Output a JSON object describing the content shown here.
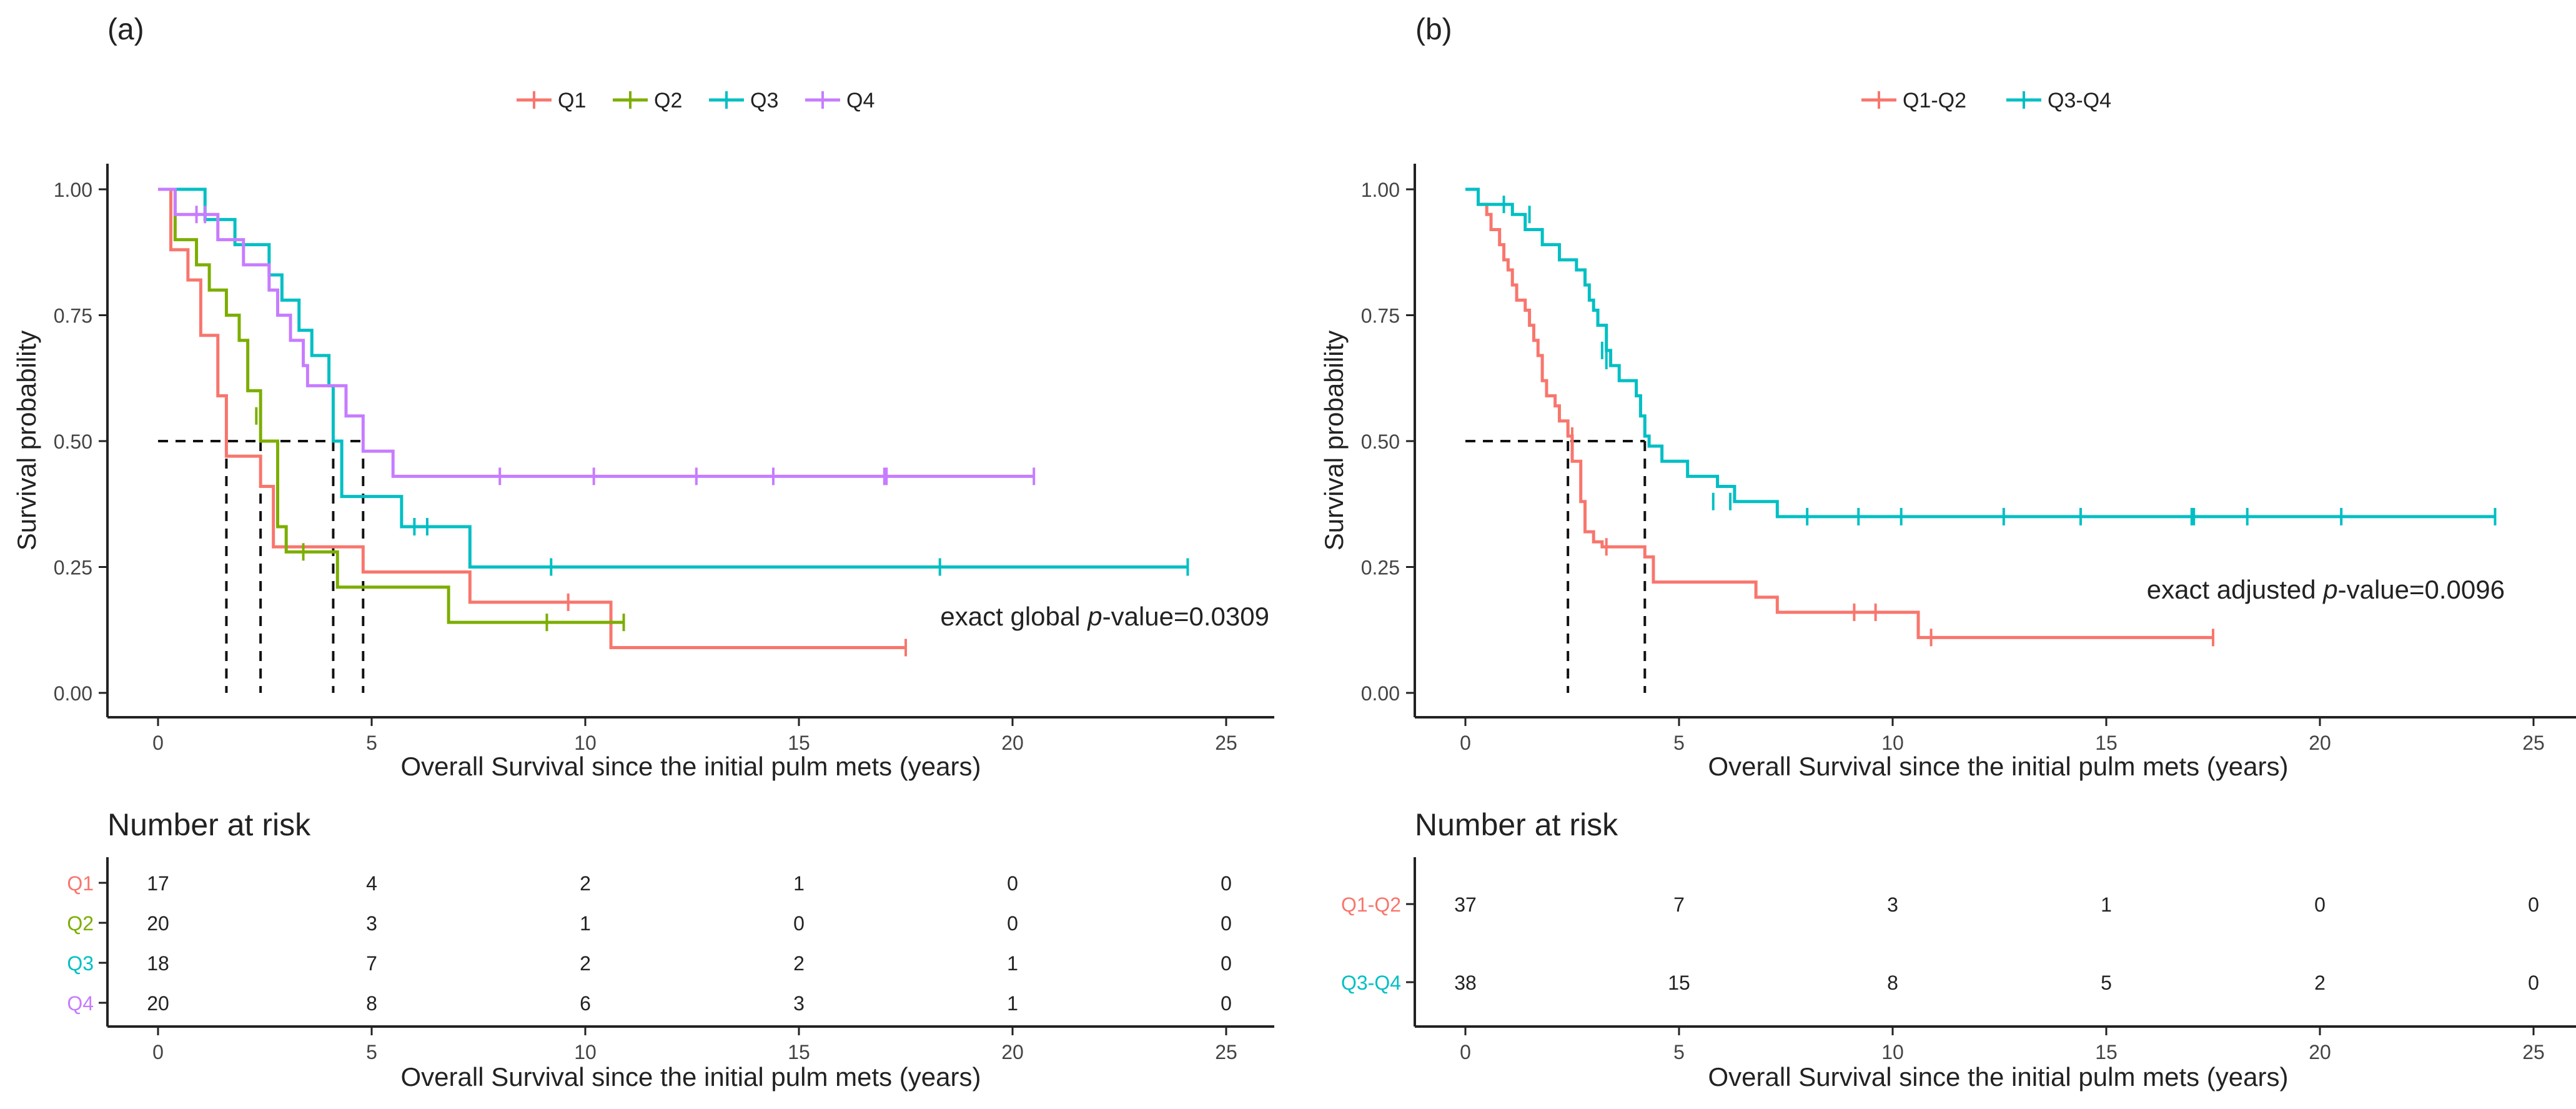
{
  "figure": {
    "panels": [
      {
        "label": "(a)",
        "legend": [
          "Q1",
          "Q2",
          "Q3",
          "Q4"
        ],
        "pvalue": {
          "prefix": "exact global ",
          "italic": "p",
          "suffix": "-value=0.0309"
        },
        "risk_title": "Number at risk"
      },
      {
        "label": "(b)",
        "legend": [
          "Q1-Q2",
          "Q3-Q4"
        ],
        "pvalue": {
          "prefix": "exact adjusted ",
          "italic": "p",
          "suffix": "-value=0.0096"
        },
        "risk_title": "Number at risk"
      }
    ]
  },
  "chart_data": [
    {
      "type": "line",
      "subtype": "kaplan-meier",
      "title": "(a)",
      "xlabel": "Overall Survival since the initial pulm mets (years)",
      "ylabel": "Survival probability",
      "xlim": [
        0,
        25
      ],
      "ylim": [
        0,
        1
      ],
      "xticks": [
        0,
        5,
        10,
        15,
        20,
        25
      ],
      "yticks": [
        0,
        0.25,
        0.5,
        0.75,
        1
      ],
      "yticklabels": [
        "0.00",
        "0.25",
        "0.50",
        "0.75",
        "1.00"
      ],
      "legend_position": "top",
      "median_line_y": 0.5,
      "medians": [
        1.6,
        2.4,
        4.1,
        4.8
      ],
      "series": [
        {
          "name": "Q1",
          "color": "#F8766D",
          "steps": [
            [
              0,
              1
            ],
            [
              0.3,
              0.88
            ],
            [
              0.7,
              0.82
            ],
            [
              1.0,
              0.71
            ],
            [
              1.4,
              0.59
            ],
            [
              1.6,
              0.47
            ],
            [
              2.4,
              0.41
            ],
            [
              2.7,
              0.29
            ],
            [
              4.8,
              0.24
            ],
            [
              7.3,
              0.18
            ],
            [
              10.6,
              0.09
            ],
            [
              17.5,
              0.09
            ]
          ],
          "censored": [
            [
              9.6,
              0.18
            ],
            [
              17.5,
              0.09
            ]
          ]
        },
        {
          "name": "Q2",
          "color": "#7CAE00",
          "steps": [
            [
              0,
              1
            ],
            [
              0.4,
              0.9
            ],
            [
              0.9,
              0.85
            ],
            [
              1.2,
              0.8
            ],
            [
              1.6,
              0.75
            ],
            [
              1.9,
              0.7
            ],
            [
              2.1,
              0.6
            ],
            [
              2.4,
              0.5
            ],
            [
              2.8,
              0.33
            ],
            [
              3.0,
              0.28
            ],
            [
              4.2,
              0.21
            ],
            [
              6.8,
              0.14
            ],
            [
              10.9,
              0.14
            ]
          ],
          "censored": [
            [
              2.3,
              0.55
            ],
            [
              3.4,
              0.28
            ],
            [
              9.1,
              0.14
            ],
            [
              10.9,
              0.14
            ]
          ]
        },
        {
          "name": "Q3",
          "color": "#00BFC4",
          "steps": [
            [
              0,
              1
            ],
            [
              1.1,
              0.94
            ],
            [
              1.8,
              0.89
            ],
            [
              2.6,
              0.83
            ],
            [
              2.9,
              0.78
            ],
            [
              3.3,
              0.72
            ],
            [
              3.6,
              0.67
            ],
            [
              4.0,
              0.61
            ],
            [
              4.1,
              0.5
            ],
            [
              4.3,
              0.39
            ],
            [
              5.7,
              0.33
            ],
            [
              7.3,
              0.25
            ],
            [
              24.1,
              0.25
            ]
          ],
          "censored": [
            [
              6.0,
              0.33
            ],
            [
              6.3,
              0.33
            ],
            [
              9.2,
              0.25
            ],
            [
              18.3,
              0.25
            ],
            [
              24.1,
              0.25
            ]
          ]
        },
        {
          "name": "Q4",
          "color": "#C77CFF",
          "steps": [
            [
              0,
              1
            ],
            [
              0.4,
              0.95
            ],
            [
              1.4,
              0.9
            ],
            [
              2.0,
              0.85
            ],
            [
              2.6,
              0.8
            ],
            [
              2.8,
              0.75
            ],
            [
              3.1,
              0.7
            ],
            [
              3.4,
              0.65
            ],
            [
              3.5,
              0.61
            ],
            [
              4.4,
              0.55
            ],
            [
              4.8,
              0.48
            ],
            [
              5.5,
              0.43
            ],
            [
              20.5,
              0.43
            ]
          ],
          "censored": [
            [
              0.9,
              0.95
            ],
            [
              1.1,
              0.95
            ],
            [
              3.4,
              0.67
            ],
            [
              8.0,
              0.43
            ],
            [
              10.2,
              0.43
            ],
            [
              12.6,
              0.43
            ],
            [
              14.4,
              0.43
            ],
            [
              17.0,
              0.43
            ],
            [
              17.05,
              0.43
            ],
            [
              20.5,
              0.43
            ]
          ]
        }
      ],
      "risk_table": {
        "title": "Number at risk",
        "xlabel": "Overall Survival since the initial pulm mets (years)",
        "times": [
          0,
          5,
          10,
          15,
          20,
          25
        ],
        "rows": [
          {
            "name": "Q1",
            "color": "#F8766D",
            "values": [
              17,
              4,
              2,
              1,
              0,
              0
            ]
          },
          {
            "name": "Q2",
            "color": "#7CAE00",
            "values": [
              20,
              3,
              1,
              0,
              0,
              0
            ]
          },
          {
            "name": "Q3",
            "color": "#00BFC4",
            "values": [
              18,
              7,
              2,
              2,
              1,
              0
            ]
          },
          {
            "name": "Q4",
            "color": "#C77CFF",
            "values": [
              20,
              8,
              6,
              3,
              1,
              0
            ]
          }
        ]
      }
    },
    {
      "type": "line",
      "subtype": "kaplan-meier",
      "title": "(b)",
      "xlabel": "Overall Survival since the initial pulm mets (years)",
      "ylabel": "Survival probability",
      "xlim": [
        0,
        25
      ],
      "ylim": [
        0,
        1
      ],
      "xticks": [
        0,
        5,
        10,
        15,
        20,
        25
      ],
      "yticks": [
        0,
        0.25,
        0.5,
        0.75,
        1
      ],
      "yticklabels": [
        "0.00",
        "0.25",
        "0.50",
        "0.75",
        "1.00"
      ],
      "legend_position": "top",
      "median_line_y": 0.5,
      "medians": [
        2.4,
        4.2
      ],
      "series": [
        {
          "name": "Q1-Q2",
          "color": "#F8766D",
          "steps": [
            [
              0,
              1
            ],
            [
              0.3,
              0.97
            ],
            [
              0.5,
              0.95
            ],
            [
              0.6,
              0.92
            ],
            [
              0.8,
              0.89
            ],
            [
              0.9,
              0.86
            ],
            [
              1.0,
              0.84
            ],
            [
              1.1,
              0.81
            ],
            [
              1.2,
              0.78
            ],
            [
              1.4,
              0.76
            ],
            [
              1.5,
              0.73
            ],
            [
              1.6,
              0.7
            ],
            [
              1.7,
              0.67
            ],
            [
              1.8,
              0.62
            ],
            [
              1.9,
              0.59
            ],
            [
              2.1,
              0.57
            ],
            [
              2.2,
              0.54
            ],
            [
              2.4,
              0.51
            ],
            [
              2.5,
              0.46
            ],
            [
              2.7,
              0.38
            ],
            [
              2.8,
              0.32
            ],
            [
              3.0,
              0.3
            ],
            [
              3.2,
              0.29
            ],
            [
              4.2,
              0.27
            ],
            [
              4.4,
              0.22
            ],
            [
              6.8,
              0.19
            ],
            [
              7.3,
              0.16
            ],
            [
              10.6,
              0.11
            ],
            [
              17.5,
              0.11
            ]
          ],
          "censored": [
            [
              2.5,
              0.51
            ],
            [
              3.3,
              0.29
            ],
            [
              9.1,
              0.16
            ],
            [
              9.6,
              0.16
            ],
            [
              10.9,
              0.11
            ],
            [
              17.5,
              0.11
            ]
          ]
        },
        {
          "name": "Q3-Q4",
          "color": "#00BFC4",
          "steps": [
            [
              0,
              1
            ],
            [
              0.3,
              0.97
            ],
            [
              1.1,
              0.95
            ],
            [
              1.4,
              0.92
            ],
            [
              1.8,
              0.89
            ],
            [
              2.2,
              0.86
            ],
            [
              2.6,
              0.84
            ],
            [
              2.8,
              0.81
            ],
            [
              2.9,
              0.78
            ],
            [
              3.0,
              0.76
            ],
            [
              3.1,
              0.73
            ],
            [
              3.3,
              0.68
            ],
            [
              3.4,
              0.65
            ],
            [
              3.6,
              0.62
            ],
            [
              4.0,
              0.59
            ],
            [
              4.1,
              0.55
            ],
            [
              4.2,
              0.51
            ],
            [
              4.3,
              0.49
            ],
            [
              4.6,
              0.46
            ],
            [
              5.2,
              0.43
            ],
            [
              5.9,
              0.41
            ],
            [
              6.3,
              0.38
            ],
            [
              7.3,
              0.35
            ],
            [
              24.1,
              0.35
            ]
          ],
          "censored": [
            [
              0.9,
              0.97
            ],
            [
              1.5,
              0.95
            ],
            [
              3.2,
              0.68
            ],
            [
              3.3,
              0.66
            ],
            [
              5.8,
              0.38
            ],
            [
              6.2,
              0.38
            ],
            [
              8.0,
              0.35
            ],
            [
              9.2,
              0.35
            ],
            [
              10.2,
              0.35
            ],
            [
              12.6,
              0.35
            ],
            [
              14.4,
              0.35
            ],
            [
              17.0,
              0.35
            ],
            [
              17.05,
              0.35
            ],
            [
              18.3,
              0.35
            ],
            [
              20.5,
              0.35
            ],
            [
              24.1,
              0.35
            ]
          ]
        }
      ],
      "risk_table": {
        "title": "Number at risk",
        "xlabel": "Overall Survival since the initial pulm mets (years)",
        "times": [
          0,
          5,
          10,
          15,
          20,
          25
        ],
        "rows": [
          {
            "name": "Q1-Q2",
            "color": "#F8766D",
            "values": [
              37,
              7,
              3,
              1,
              0,
              0
            ]
          },
          {
            "name": "Q3-Q4",
            "color": "#00BFC4",
            "values": [
              38,
              15,
              8,
              5,
              2,
              0
            ]
          }
        ]
      }
    }
  ]
}
